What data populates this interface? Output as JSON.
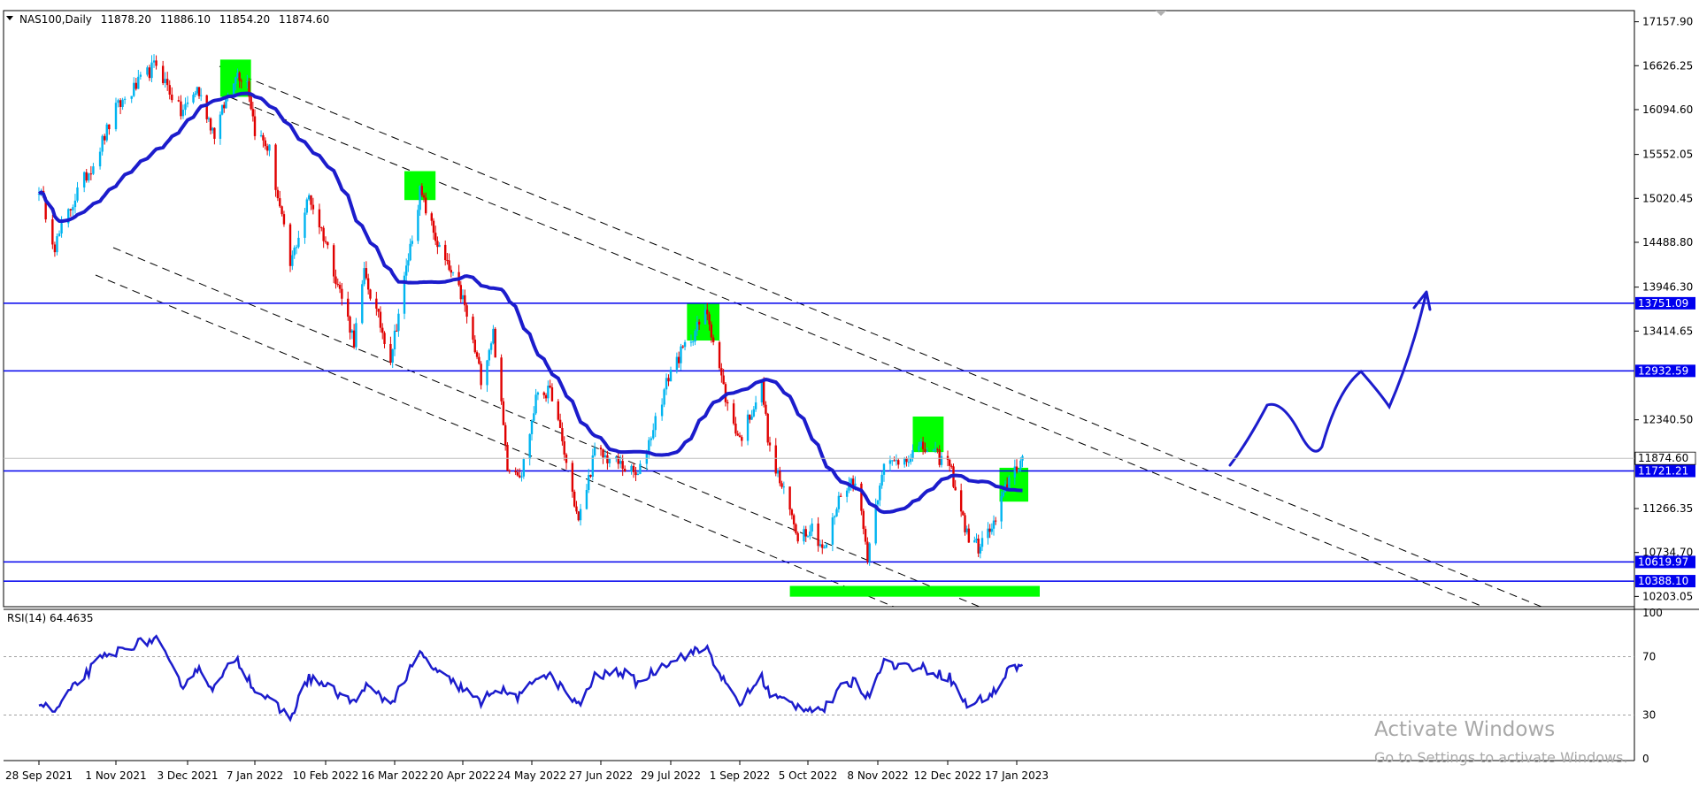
{
  "chart_data": [
    {
      "type": "candlestick",
      "symbol_info": {
        "symbol": "NAS100,Daily",
        "open": "11878.20",
        "high": "11886.10",
        "low": "11854.20",
        "close": "11874.60"
      },
      "x_tick_labels": [
        "28 Sep 2021",
        "1 Nov 2021",
        "3 Dec 2021",
        "7 Jan 2022",
        "10 Feb 2022",
        "16 Mar 2022",
        "20 Apr 2022",
        "24 May 2022",
        "27 Jun 2022",
        "29 Jul 2022",
        "1 Sep 2022",
        "5 Oct 2022",
        "8 Nov 2022",
        "12 Dec 2022",
        "17 Jan 2023"
      ],
      "y_tick_labels": [
        "17157.90",
        "16626.25",
        "16094.60",
        "15552.05",
        "15020.45",
        "14488.80",
        "13946.30",
        "13414.65",
        "12340.50",
        "11266.35",
        "10734.70",
        "10203.05"
      ],
      "ylim": [
        10100,
        17250
      ],
      "current_price": "11874.60",
      "horizontal_levels": [
        "13751.09",
        "12932.59",
        "11721.21",
        "10619.97",
        "10388.10"
      ],
      "price_anchors": [
        {
          "date": "2021-09-28",
          "close": 15150
        },
        {
          "date": "2021-10-05",
          "close": 14450
        },
        {
          "date": "2021-10-15",
          "close": 15100
        },
        {
          "date": "2021-10-22",
          "close": 15450
        },
        {
          "date": "2021-11-01",
          "close": 16100
        },
        {
          "date": "2021-11-19",
          "close": 16650
        },
        {
          "date": "2021-11-30",
          "close": 16050
        },
        {
          "date": "2021-12-08",
          "close": 16350
        },
        {
          "date": "2021-12-17",
          "close": 15800
        },
        {
          "date": "2021-12-28",
          "close": 16550
        },
        {
          "date": "2022-01-03",
          "close": 16450
        },
        {
          "date": "2022-01-07",
          "close": 15850
        },
        {
          "date": "2022-01-14",
          "close": 15600
        },
        {
          "date": "2022-01-24",
          "close": 14200
        },
        {
          "date": "2022-02-02",
          "close": 15050
        },
        {
          "date": "2022-02-10",
          "close": 14500
        },
        {
          "date": "2022-02-24",
          "close": 13300
        },
        {
          "date": "2022-03-01",
          "close": 14100
        },
        {
          "date": "2022-03-14",
          "close": 13100
        },
        {
          "date": "2022-03-29",
          "close": 15100
        },
        {
          "date": "2022-04-08",
          "close": 14400
        },
        {
          "date": "2022-04-20",
          "close": 13800
        },
        {
          "date": "2022-04-29",
          "close": 12850
        },
        {
          "date": "2022-05-05",
          "close": 13400
        },
        {
          "date": "2022-05-12",
          "close": 11800
        },
        {
          "date": "2022-05-19",
          "close": 11700
        },
        {
          "date": "2022-05-27",
          "close": 12700
        },
        {
          "date": "2022-06-03",
          "close": 12650
        },
        {
          "date": "2022-06-16",
          "close": 11100
        },
        {
          "date": "2022-06-24",
          "close": 11950
        },
        {
          "date": "2022-07-06",
          "close": 11800
        },
        {
          "date": "2022-07-14",
          "close": 11650
        },
        {
          "date": "2022-07-29",
          "close": 12950
        },
        {
          "date": "2022-08-16",
          "close": 13650
        },
        {
          "date": "2022-08-26",
          "close": 12500
        },
        {
          "date": "2022-09-01",
          "close": 12100
        },
        {
          "date": "2022-09-12",
          "close": 12750
        },
        {
          "date": "2022-09-16",
          "close": 11950
        },
        {
          "date": "2022-09-30",
          "close": 10950
        },
        {
          "date": "2022-10-07",
          "close": 11050
        },
        {
          "date": "2022-10-13",
          "close": 10750
        },
        {
          "date": "2022-10-21",
          "close": 11450
        },
        {
          "date": "2022-10-28",
          "close": 11650
        },
        {
          "date": "2022-11-03",
          "close": 10700
        },
        {
          "date": "2022-11-10",
          "close": 11750
        },
        {
          "date": "2022-11-30",
          "close": 12000
        },
        {
          "date": "2022-12-13",
          "close": 11800
        },
        {
          "date": "2022-12-22",
          "close": 10950
        },
        {
          "date": "2022-12-28",
          "close": 10800
        },
        {
          "date": "2023-01-06",
          "close": 11100
        },
        {
          "date": "2023-01-13",
          "close": 11650
        },
        {
          "date": "2023-01-20",
          "close": 11870
        }
      ]
    },
    {
      "type": "line",
      "title": "RSI(14) 64.4635",
      "y_tick_labels": [
        "100",
        "70",
        "30",
        "0"
      ],
      "ylim": [
        0,
        100
      ],
      "levels": [
        70,
        30
      ],
      "rsi_anchors": [
        {
          "date": "2021-09-28",
          "value": 38
        },
        {
          "date": "2021-10-05",
          "value": 32
        },
        {
          "date": "2021-10-15",
          "value": 52
        },
        {
          "date": "2021-10-25",
          "value": 68
        },
        {
          "date": "2021-11-08",
          "value": 78
        },
        {
          "date": "2021-11-19",
          "value": 82
        },
        {
          "date": "2021-11-30",
          "value": 50
        },
        {
          "date": "2021-12-08",
          "value": 62
        },
        {
          "date": "2021-12-17",
          "value": 48
        },
        {
          "date": "2021-12-28",
          "value": 70
        },
        {
          "date": "2022-01-07",
          "value": 48
        },
        {
          "date": "2022-01-24",
          "value": 28
        },
        {
          "date": "2022-02-02",
          "value": 56
        },
        {
          "date": "2022-02-10",
          "value": 50
        },
        {
          "date": "2022-02-24",
          "value": 38
        },
        {
          "date": "2022-03-01",
          "value": 50
        },
        {
          "date": "2022-03-14",
          "value": 38
        },
        {
          "date": "2022-03-29",
          "value": 72
        },
        {
          "date": "2022-04-08",
          "value": 58
        },
        {
          "date": "2022-04-20",
          "value": 48
        },
        {
          "date": "2022-04-29",
          "value": 38
        },
        {
          "date": "2022-05-05",
          "value": 48
        },
        {
          "date": "2022-05-19",
          "value": 42
        },
        {
          "date": "2022-05-27",
          "value": 58
        },
        {
          "date": "2022-06-03",
          "value": 56
        },
        {
          "date": "2022-06-16",
          "value": 36
        },
        {
          "date": "2022-06-24",
          "value": 56
        },
        {
          "date": "2022-07-06",
          "value": 60
        },
        {
          "date": "2022-07-14",
          "value": 52
        },
        {
          "date": "2022-07-29",
          "value": 68
        },
        {
          "date": "2022-08-16",
          "value": 76
        },
        {
          "date": "2022-08-26",
          "value": 48
        },
        {
          "date": "2022-09-01",
          "value": 38
        },
        {
          "date": "2022-09-12",
          "value": 56
        },
        {
          "date": "2022-09-16",
          "value": 44
        },
        {
          "date": "2022-09-30",
          "value": 36
        },
        {
          "date": "2022-10-13",
          "value": 34
        },
        {
          "date": "2022-10-21",
          "value": 48
        },
        {
          "date": "2022-10-28",
          "value": 54
        },
        {
          "date": "2022-11-03",
          "value": 42
        },
        {
          "date": "2022-11-10",
          "value": 66
        },
        {
          "date": "2022-11-30",
          "value": 62
        },
        {
          "date": "2022-12-13",
          "value": 56
        },
        {
          "date": "2022-12-22",
          "value": 36
        },
        {
          "date": "2022-12-28",
          "value": 40
        },
        {
          "date": "2023-01-06",
          "value": 46
        },
        {
          "date": "2023-01-13",
          "value": 62
        },
        {
          "date": "2023-01-20",
          "value": 64.46
        }
      ]
    }
  ],
  "watermark": {
    "title": "Activate Windows",
    "subtitle": "Go to Settings to activate Windows."
  },
  "colors": {
    "bull": "#00b4f0",
    "bear": "#e00000",
    "ma": "#1c1ccc",
    "level": "#0000ee",
    "zone": "#00ff00",
    "grid_dashed": "#000000"
  }
}
